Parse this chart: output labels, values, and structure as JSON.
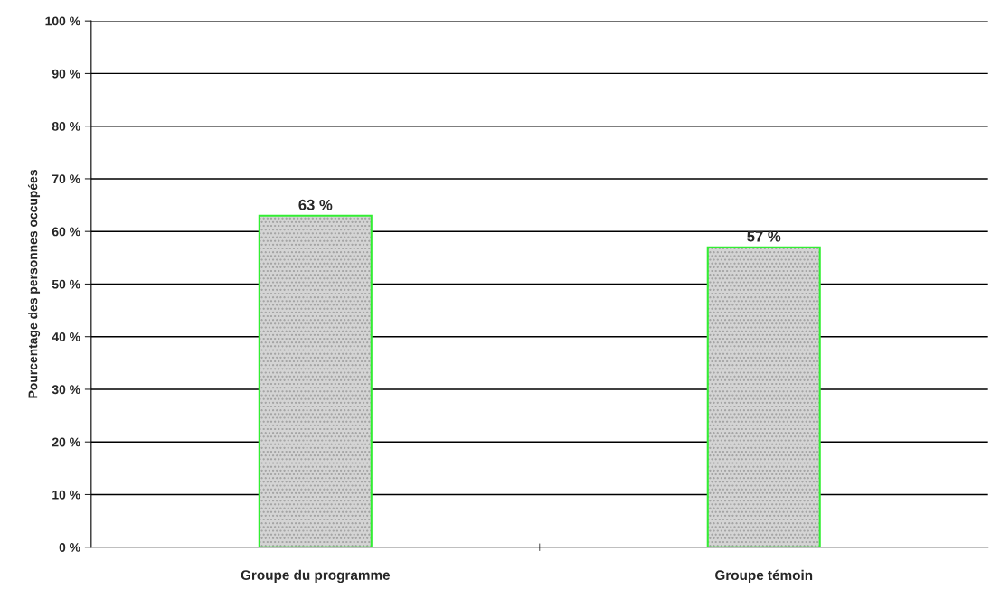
{
  "chart_data": {
    "type": "bar",
    "ylabel": "Pourcentage des personnes occupées",
    "categories": [
      "Groupe du programme",
      "Groupe témoin"
    ],
    "values": [
      63,
      57
    ],
    "value_labels": [
      "63 %",
      "57 %"
    ],
    "color": "#33ee33",
    "ylim": [
      0,
      100
    ],
    "yticks": [
      {
        "value": 0,
        "label": "0 %"
      },
      {
        "value": 10,
        "label": "10 %"
      },
      {
        "value": 20,
        "label": "20 %"
      },
      {
        "value": 30,
        "label": "30 %"
      },
      {
        "value": 40,
        "label": "40 %"
      },
      {
        "value": 50,
        "label": "50 %"
      },
      {
        "value": 60,
        "label": "60 %"
      },
      {
        "value": 70,
        "label": "70 %"
      },
      {
        "value": 80,
        "label": "80 %"
      },
      {
        "value": 90,
        "label": "90 %"
      },
      {
        "value": 100,
        "label": "100 %"
      }
    ],
    "grid": "y"
  }
}
